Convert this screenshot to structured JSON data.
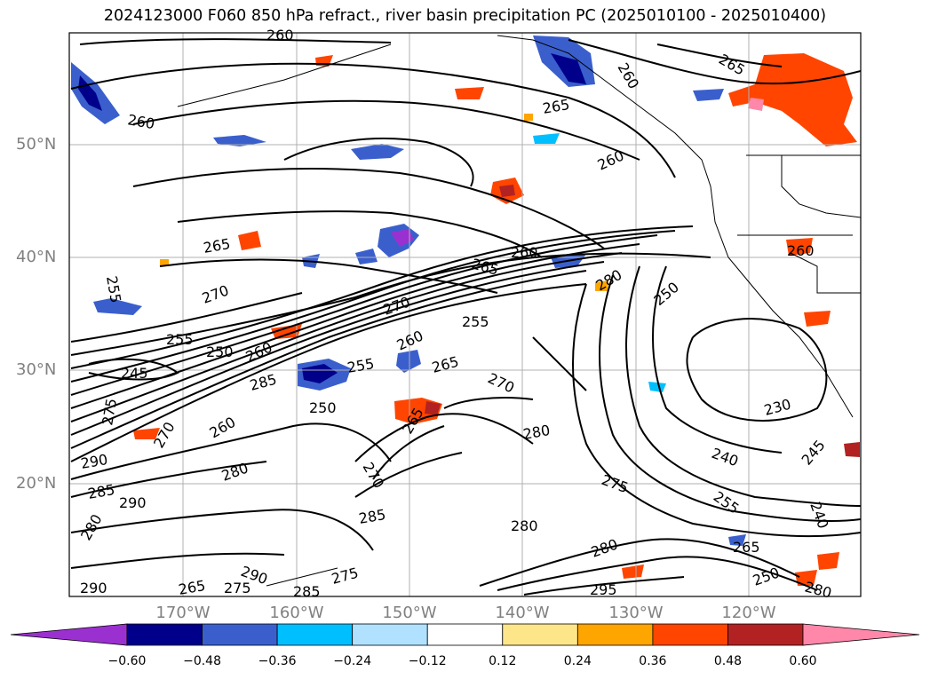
{
  "title": "2024123000 F060 850 hPa refract., river basin precipitation PC (2025010100 - 2025010400)",
  "latitude_labels": [
    "50°N",
    "40°N",
    "30°N",
    "20°N"
  ],
  "longitude_labels": [
    "170°W",
    "160°W",
    "150°W",
    "140°W",
    "130°W",
    "120°W"
  ],
  "colorbar": {
    "colors": [
      "#9b30d0",
      "#00008b",
      "#3a5fcd",
      "#00bfff",
      "#b0e2ff",
      "#ffffff",
      "#fde68a",
      "#ffa500",
      "#ff4500",
      "#b22222",
      "#ff88aa"
    ],
    "tick_labels": [
      "−0.60",
      "−0.48",
      "−0.36",
      "−0.24",
      "−0.12",
      "0.12",
      "0.24",
      "0.36",
      "0.48",
      "0.60"
    ]
  },
  "contour_labels": [
    "260",
    "260",
    "265",
    "265",
    "260",
    "260",
    "265",
    "260",
    "255",
    "255",
    "265",
    "270",
    "270",
    "280",
    "250",
    "255",
    "250",
    "245",
    "260",
    "260",
    "285",
    "265",
    "255",
    "270",
    "250",
    "265",
    "275",
    "280",
    "230",
    "290",
    "270",
    "260",
    "280",
    "270",
    "285",
    "275",
    "245",
    "240",
    "280",
    "285",
    "290",
    "255",
    "280",
    "240",
    "265",
    "250",
    "280",
    "295",
    "290",
    "275",
    "285",
    "265",
    "275",
    "290",
    "260",
    "280"
  ],
  "map_features": [
    "land-boundaries",
    "grid-lines",
    "refractivity-contours",
    "precipitation-pc-shading"
  ]
}
